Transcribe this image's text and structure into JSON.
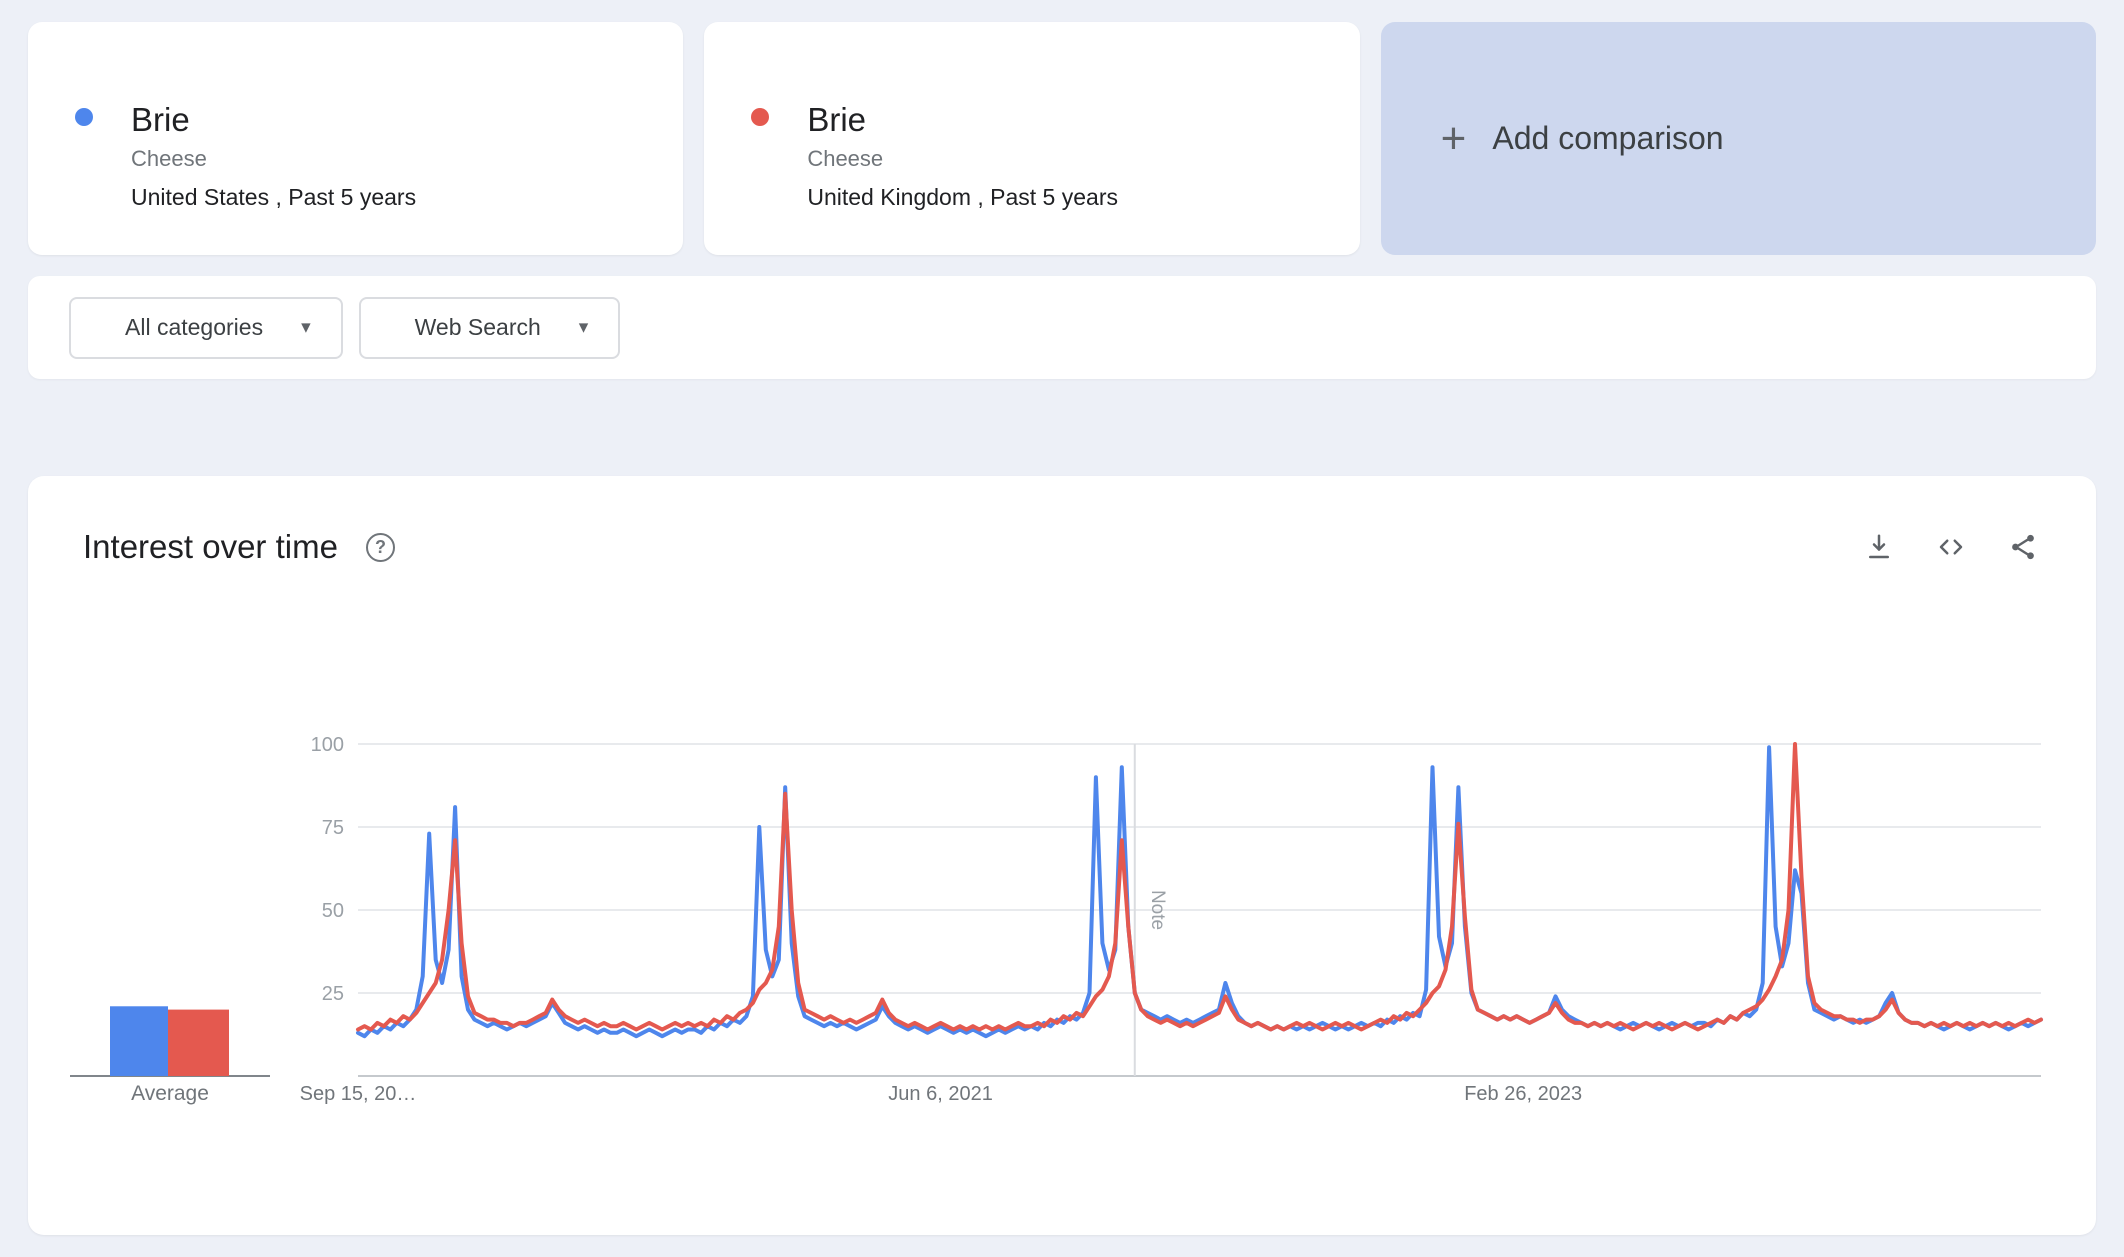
{
  "comparison": {
    "terms": [
      {
        "term": "Brie",
        "type": "Cheese",
        "scope": "United States , Past 5 years",
        "color": "#4e86ec"
      },
      {
        "term": "Brie",
        "type": "Cheese",
        "scope": "United Kingdom , Past 5 years",
        "color": "#e4594f"
      }
    ],
    "add_label": "Add comparison",
    "plus_icon": "+"
  },
  "filters": {
    "category": "All categories",
    "search_type": "Web Search"
  },
  "interest_card": {
    "title": "Interest over time",
    "icons": [
      "help-icon",
      "download-icon",
      "embed-code-icon",
      "share-icon"
    ]
  },
  "chart_data": {
    "type": "line",
    "title": "Interest over time",
    "ylim": [
      0,
      100
    ],
    "y_ticks": [
      25,
      50,
      75,
      100
    ],
    "grid": true,
    "x_ticks": [
      {
        "week": 0,
        "label": "Sep 15, 20…"
      },
      {
        "week": 90,
        "label": "Jun 6, 2021"
      },
      {
        "week": 180,
        "label": "Feb 26, 2023"
      }
    ],
    "note": {
      "week": 120,
      "label": "Note"
    },
    "average_label": "Average",
    "series": [
      {
        "name": "Brie (United States)",
        "color": "#4e86ec",
        "average": 21,
        "values": [
          13,
          12,
          14,
          13,
          15,
          14,
          16,
          15,
          17,
          20,
          30,
          73,
          35,
          28,
          38,
          81,
          30,
          20,
          17,
          16,
          15,
          16,
          15,
          14,
          15,
          16,
          15,
          16,
          17,
          18,
          22,
          19,
          16,
          15,
          14,
          15,
          14,
          13,
          14,
          13,
          13,
          14,
          13,
          12,
          13,
          14,
          13,
          12,
          13,
          14,
          13,
          14,
          14,
          13,
          15,
          14,
          16,
          15,
          17,
          16,
          18,
          24,
          75,
          38,
          30,
          35,
          87,
          40,
          24,
          18,
          17,
          16,
          15,
          16,
          15,
          16,
          15,
          14,
          15,
          16,
          17,
          21,
          18,
          16,
          15,
          14,
          15,
          14,
          13,
          14,
          15,
          14,
          13,
          14,
          13,
          14,
          13,
          12,
          13,
          14,
          13,
          14,
          15,
          14,
          15,
          14,
          16,
          15,
          17,
          16,
          18,
          17,
          19,
          25,
          90,
          40,
          32,
          38,
          93,
          45,
          25,
          20,
          19,
          18,
          17,
          18,
          17,
          16,
          17,
          16,
          17,
          18,
          19,
          20,
          28,
          22,
          18,
          16,
          15,
          16,
          15,
          14,
          15,
          14,
          15,
          14,
          15,
          14,
          15,
          16,
          15,
          14,
          15,
          14,
          15,
          16,
          15,
          16,
          15,
          17,
          16,
          18,
          17,
          19,
          18,
          26,
          93,
          42,
          33,
          40,
          87,
          45,
          25,
          20,
          19,
          18,
          17,
          18,
          17,
          18,
          17,
          16,
          17,
          18,
          19,
          24,
          20,
          18,
          17,
          16,
          15,
          16,
          15,
          16,
          15,
          14,
          15,
          16,
          15,
          16,
          15,
          14,
          15,
          16,
          15,
          16,
          15,
          16,
          16,
          15,
          17,
          16,
          18,
          17,
          19,
          18,
          20,
          28,
          99,
          45,
          33,
          40,
          62,
          55,
          28,
          20,
          19,
          18,
          17,
          18,
          17,
          16,
          17,
          16,
          17,
          18,
          22,
          25,
          19,
          17,
          16,
          16,
          15,
          16,
          15,
          14,
          15,
          16,
          15,
          14,
          15,
          16,
          15,
          16,
          15,
          14,
          15,
          16,
          15,
          16,
          17
        ]
      },
      {
        "name": "Brie (United Kingdom)",
        "color": "#e4594f",
        "average": 20,
        "values": [
          14,
          15,
          14,
          16,
          15,
          17,
          16,
          18,
          17,
          19,
          22,
          25,
          28,
          35,
          50,
          71,
          40,
          24,
          19,
          18,
          17,
          17,
          16,
          16,
          15,
          16,
          16,
          17,
          18,
          19,
          23,
          20,
          18,
          17,
          16,
          17,
          16,
          15,
          16,
          15,
          15,
          16,
          15,
          14,
          15,
          16,
          15,
          14,
          15,
          16,
          15,
          16,
          15,
          16,
          15,
          17,
          16,
          18,
          17,
          19,
          20,
          22,
          26,
          28,
          32,
          45,
          85,
          50,
          28,
          20,
          19,
          18,
          17,
          18,
          17,
          16,
          17,
          16,
          17,
          18,
          19,
          23,
          19,
          17,
          16,
          15,
          16,
          15,
          14,
          15,
          16,
          15,
          14,
          15,
          14,
          15,
          14,
          15,
          14,
          15,
          14,
          15,
          16,
          15,
          15,
          16,
          15,
          17,
          16,
          18,
          17,
          19,
          18,
          21,
          24,
          26,
          30,
          40,
          71,
          45,
          25,
          20,
          18,
          17,
          16,
          17,
          16,
          15,
          16,
          15,
          16,
          17,
          18,
          19,
          24,
          20,
          17,
          16,
          15,
          16,
          15,
          14,
          15,
          14,
          15,
          16,
          15,
          16,
          15,
          14,
          15,
          16,
          15,
          16,
          15,
          14,
          15,
          16,
          17,
          16,
          18,
          17,
          19,
          18,
          20,
          22,
          25,
          27,
          32,
          45,
          76,
          48,
          26,
          20,
          19,
          18,
          17,
          18,
          17,
          18,
          17,
          16,
          17,
          18,
          19,
          22,
          19,
          17,
          16,
          16,
          15,
          16,
          15,
          16,
          15,
          16,
          15,
          14,
          15,
          16,
          15,
          16,
          15,
          14,
          15,
          16,
          15,
          14,
          15,
          16,
          17,
          16,
          18,
          17,
          19,
          20,
          21,
          23,
          26,
          30,
          35,
          50,
          100,
          60,
          30,
          22,
          20,
          19,
          18,
          18,
          17,
          17,
          16,
          17,
          17,
          18,
          20,
          23,
          19,
          17,
          16,
          16,
          15,
          16,
          15,
          16,
          15,
          16,
          15,
          16,
          15,
          16,
          15,
          16,
          15,
          16,
          15,
          16,
          17,
          16,
          17
        ]
      }
    ]
  }
}
